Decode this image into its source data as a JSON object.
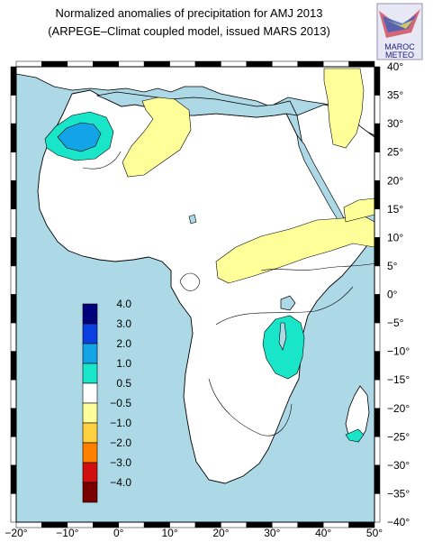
{
  "title": {
    "line1": "Normalized anomalies of precipitation for AMJ 2013",
    "line2": "(ARPEGE–Climat coupled model, issued MARS 2013)"
  },
  "logo": {
    "text_top": "MAROC",
    "text_bottom": "METEO"
  },
  "map": {
    "lon_range": [
      -20,
      50
    ],
    "lat_range": [
      -40,
      40
    ],
    "x_ticks": [
      "−20°",
      "−10°",
      "0°",
      "10°",
      "20°",
      "30°",
      "40°",
      "50°"
    ],
    "y_ticks": [
      "40°",
      "35°",
      "30°",
      "25°",
      "20°",
      "15°",
      "10°",
      "5°",
      "0°",
      "−5°",
      "−10°",
      "−15°",
      "−20°",
      "−25°",
      "−30°",
      "−35°",
      "−40°"
    ],
    "colors": {
      "ocean": "#add8e6",
      "land": "#ffffff",
      "border": "#000000"
    }
  },
  "colorbar": {
    "labels": [
      "4.0",
      "3.0",
      "2.0",
      "1.0",
      "0.5",
      "−0.5",
      "−1.0",
      "−2.0",
      "−3.0",
      "−4.0"
    ],
    "colors": [
      "#00007a",
      "#0b3fe0",
      "#12a4e6",
      "#19e6c8",
      "#ffffff",
      "#ffff9a",
      "#ffd040",
      "#ff8000",
      "#d01010",
      "#7a0000"
    ]
  }
}
